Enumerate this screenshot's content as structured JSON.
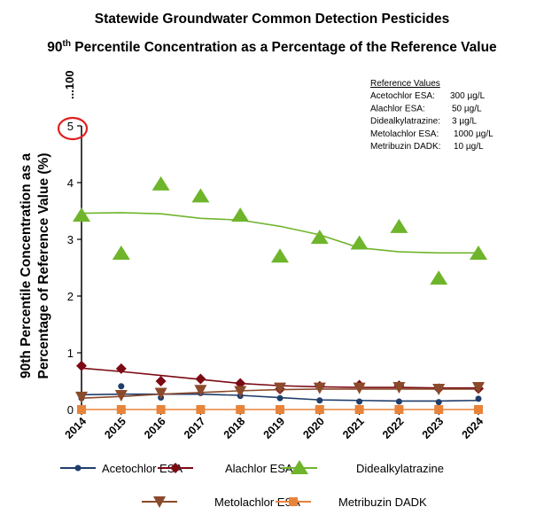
{
  "chart_data": {
    "type": "line",
    "title": "Statewide Groundwater Common Detection Pesticides",
    "subtitle_pre": "90",
    "subtitle_sup": "th",
    "subtitle_post": " Percentile Concentration as a Percentage of the Reference Value",
    "ylabel_line1": "90th Percentile Concentration as a",
    "ylabel_line2": "Percentage of Reference Value (%)",
    "ylim": [
      0,
      5
    ],
    "yticks": [
      "0",
      "1",
      "2",
      "3",
      "4",
      "5"
    ],
    "ybreak_label": "...100",
    "highlight_color": "#e02020",
    "x": [
      "2014",
      "2015",
      "2016",
      "2017",
      "2018",
      "2019",
      "2020",
      "2021",
      "2022",
      "2023",
      "2024"
    ],
    "reference_box": {
      "title": "Reference Values",
      "rows": [
        {
          "name": "Acetochlor ESA:",
          "value": "300 µg/L"
        },
        {
          "name": "Alachlor ESA:",
          "value": "50 µg/L"
        },
        {
          "name": "Didealkylatrazine:",
          "value": "3 µg/L"
        },
        {
          "name": "Metolachlor ESA:",
          "value": "1000 µg/L"
        },
        {
          "name": "Metribuzin DADK:",
          "value": "10 µg/L"
        }
      ]
    },
    "legend_placement": "bottom",
    "series": [
      {
        "name": "Acetochlor ESA",
        "color": "#1f3d6b",
        "marker": "circle",
        "values": [
          0.2,
          0.41,
          0.21,
          0.29,
          0.24,
          0.2,
          0.16,
          0.14,
          0.14,
          0.13,
          0.19
        ],
        "trend": [
          0.26,
          0.27,
          0.27,
          0.27,
          0.25,
          0.21,
          0.17,
          0.16,
          0.15,
          0.15,
          0.16
        ]
      },
      {
        "name": "Alachlor ESA",
        "color": "#7b0a14",
        "marker": "diamond",
        "values": [
          0.77,
          0.72,
          0.5,
          0.54,
          0.46,
          0.36,
          0.41,
          0.43,
          0.42,
          0.37,
          0.37
        ],
        "trend": [
          0.73,
          0.67,
          0.6,
          0.53,
          0.46,
          0.42,
          0.4,
          0.39,
          0.39,
          0.38,
          0.38
        ]
      },
      {
        "name": "Didealkylatrazine",
        "color": "#6fb52c",
        "marker": "triangle-up",
        "values": [
          3.42,
          2.75,
          3.97,
          3.76,
          3.42,
          2.7,
          3.03,
          2.93,
          3.22,
          2.31,
          2.75
        ],
        "trend": [
          3.46,
          3.47,
          3.45,
          3.37,
          3.34,
          3.23,
          3.08,
          2.85,
          2.78,
          2.76,
          2.76
        ]
      },
      {
        "name": "Metolachlor ESA",
        "color": "#8b4a2b",
        "marker": "triangle-down",
        "values": [
          0.22,
          0.25,
          0.29,
          0.34,
          0.32,
          0.38,
          0.38,
          0.38,
          0.39,
          0.36,
          0.39
        ],
        "trend": [
          0.2,
          0.23,
          0.27,
          0.3,
          0.33,
          0.35,
          0.36,
          0.36,
          0.36,
          0.36,
          0.36
        ]
      },
      {
        "name": "Metribuzin DADK",
        "color": "#e8833a",
        "marker": "square",
        "values": [
          0,
          0,
          0,
          0,
          0,
          0,
          0,
          0,
          0,
          0,
          0
        ],
        "trend": [
          0,
          0,
          0,
          0,
          0,
          0,
          0,
          0,
          0,
          0,
          0
        ]
      }
    ]
  }
}
